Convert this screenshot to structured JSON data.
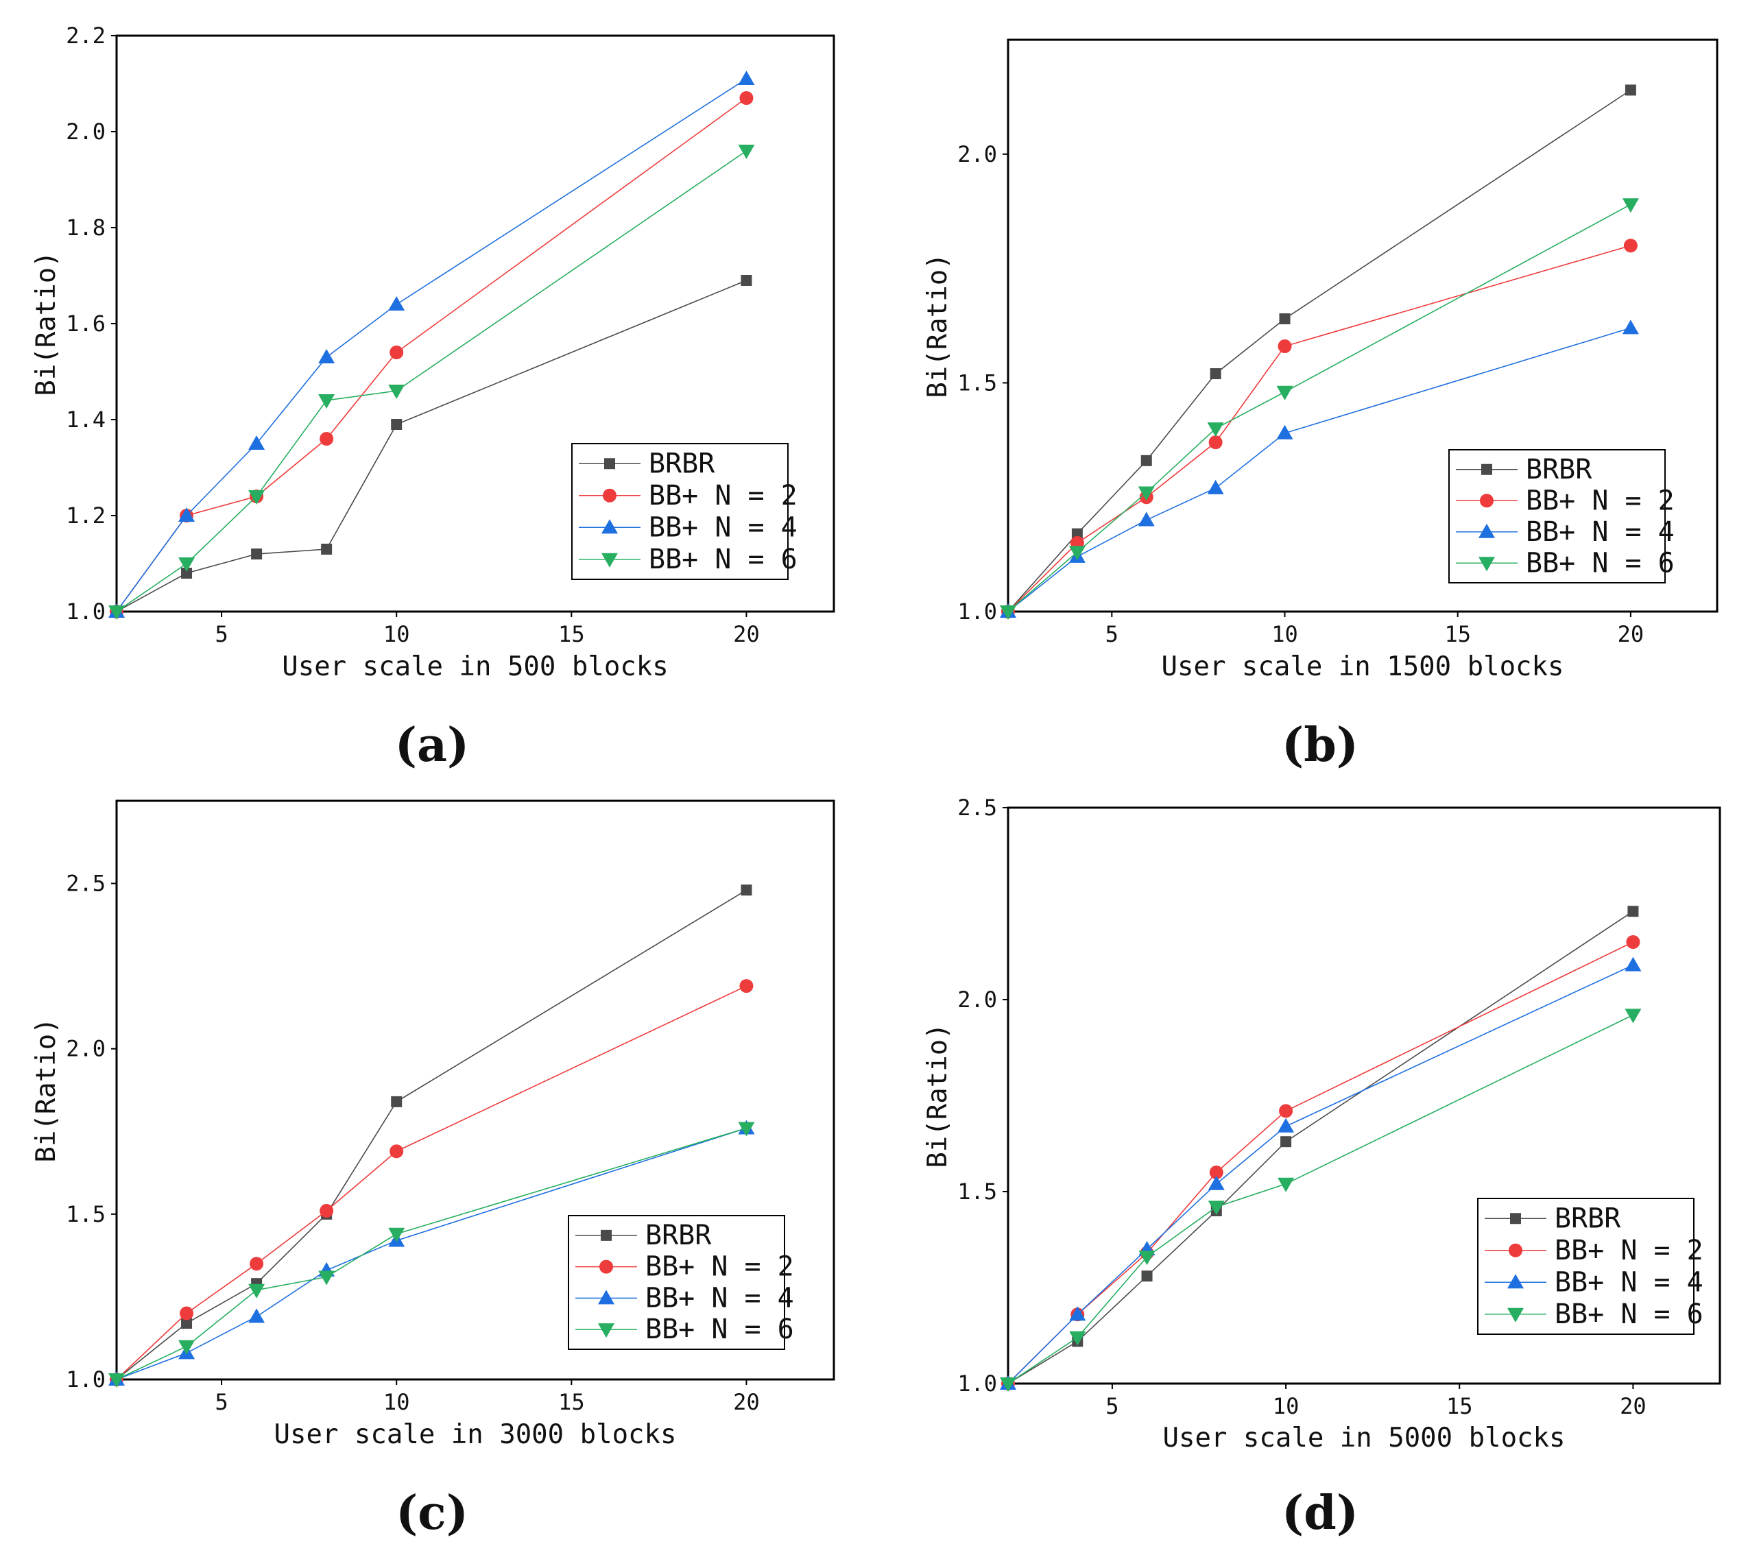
{
  "colors": {
    "BRBR": "#4a4a4a",
    "BB+ N = 2": "#ee3b3b",
    "BB+ N = 4": "#1e6fe0",
    "BB+ N = 6": "#27ae60"
  },
  "chart_data": [
    {
      "type": "line",
      "panel_label": "(a)",
      "xlabel": "User scale in 500 blocks",
      "ylabel": "Bi(Ratio)",
      "x": [
        2,
        4,
        6,
        8,
        10,
        20
      ],
      "xlim": [
        2,
        22.5
      ],
      "ylim": [
        1.0,
        2.2
      ],
      "xticks": [
        5,
        10,
        15,
        20
      ],
      "yticks": [
        1.0,
        1.2,
        1.4,
        1.6,
        1.8,
        2.0,
        2.2
      ],
      "ytick_labels": [
        "1.0",
        "1.2",
        "1.4",
        "1.6",
        "1.8",
        "2.0",
        "2.2"
      ],
      "legend_position": "lower-right",
      "series": [
        {
          "name": "BRBR",
          "marker": "square",
          "values": [
            1.0,
            1.08,
            1.12,
            1.13,
            1.39,
            1.69
          ]
        },
        {
          "name": "BB+ N = 2",
          "marker": "circle",
          "values": [
            1.0,
            1.2,
            1.24,
            1.36,
            1.54,
            2.07
          ]
        },
        {
          "name": "BB+ N = 4",
          "marker": "triangle-up",
          "values": [
            1.0,
            1.2,
            1.35,
            1.53,
            1.64,
            2.11
          ]
        },
        {
          "name": "BB+ N = 6",
          "marker": "triangle-down",
          "values": [
            1.0,
            1.1,
            1.24,
            1.44,
            1.46,
            1.96
          ]
        }
      ]
    },
    {
      "type": "line",
      "panel_label": "(b)",
      "xlabel": "User scale in 1500 blocks",
      "ylabel": "Bi(Ratio)",
      "x": [
        2,
        4,
        6,
        8,
        10,
        20
      ],
      "xlim": [
        2,
        22.5
      ],
      "ylim": [
        1.0,
        2.25
      ],
      "xticks": [
        5,
        10,
        15,
        20
      ],
      "yticks": [
        1.0,
        1.5,
        2.0
      ],
      "ytick_labels": [
        "1.0",
        "1.5",
        "2.0"
      ],
      "legend_position": "lower-right",
      "series": [
        {
          "name": "BRBR",
          "marker": "square",
          "values": [
            1.0,
            1.17,
            1.33,
            1.52,
            1.64,
            2.14
          ]
        },
        {
          "name": "BB+ N = 2",
          "marker": "circle",
          "values": [
            1.0,
            1.15,
            1.25,
            1.37,
            1.58,
            1.8
          ]
        },
        {
          "name": "BB+ N = 4",
          "marker": "triangle-up",
          "values": [
            1.0,
            1.12,
            1.2,
            1.27,
            1.39,
            1.62
          ]
        },
        {
          "name": "BB+ N = 6",
          "marker": "triangle-down",
          "values": [
            1.0,
            1.13,
            1.26,
            1.4,
            1.48,
            1.89
          ]
        }
      ]
    },
    {
      "type": "line",
      "panel_label": "(c)",
      "xlabel": "User scale in 3000 blocks",
      "ylabel": "Bi(Ratio)",
      "x": [
        2,
        4,
        6,
        8,
        10,
        20
      ],
      "xlim": [
        2,
        22.5
      ],
      "ylim": [
        1.0,
        2.75
      ],
      "xticks": [
        5,
        10,
        15,
        20
      ],
      "yticks": [
        1.0,
        1.5,
        2.0,
        2.5
      ],
      "ytick_labels": [
        "1.0",
        "1.5",
        "2.0",
        "2.5"
      ],
      "legend_position": "lower-right",
      "series": [
        {
          "name": "BRBR",
          "marker": "square",
          "values": [
            1.0,
            1.17,
            1.29,
            1.5,
            1.84,
            2.48
          ]
        },
        {
          "name": "BB+ N = 2",
          "marker": "circle",
          "values": [
            1.0,
            1.2,
            1.35,
            1.51,
            1.69,
            2.19
          ]
        },
        {
          "name": "BB+ N = 4",
          "marker": "triangle-up",
          "values": [
            1.0,
            1.08,
            1.19,
            1.33,
            1.42,
            1.76
          ]
        },
        {
          "name": "BB+ N = 6",
          "marker": "triangle-down",
          "values": [
            1.0,
            1.1,
            1.27,
            1.31,
            1.44,
            1.76
          ]
        }
      ]
    },
    {
      "type": "line",
      "panel_label": "(d)",
      "xlabel": "User scale in 5000 blocks",
      "ylabel": "Bi(Ratio)",
      "x": [
        2,
        4,
        6,
        8,
        10,
        20
      ],
      "xlim": [
        2,
        22.5
      ],
      "ylim": [
        1.0,
        2.5
      ],
      "xticks": [
        5,
        10,
        15,
        20
      ],
      "yticks": [
        1.0,
        1.5,
        2.0,
        2.5
      ],
      "ytick_labels": [
        "1.0",
        "1.5",
        "2.0",
        "2.5"
      ],
      "legend_position": "lower-right",
      "series": [
        {
          "name": "BRBR",
          "marker": "square",
          "values": [
            1.0,
            1.11,
            1.28,
            1.45,
            1.63,
            2.23
          ]
        },
        {
          "name": "BB+ N = 2",
          "marker": "circle",
          "values": [
            1.0,
            1.18,
            1.34,
            1.55,
            1.71,
            2.15
          ]
        },
        {
          "name": "BB+ N = 4",
          "marker": "triangle-up",
          "values": [
            1.0,
            1.18,
            1.35,
            1.52,
            1.67,
            2.09
          ]
        },
        {
          "name": "BB+ N = 6",
          "marker": "triangle-down",
          "values": [
            1.0,
            1.12,
            1.33,
            1.46,
            1.52,
            1.96
          ]
        }
      ]
    }
  ]
}
